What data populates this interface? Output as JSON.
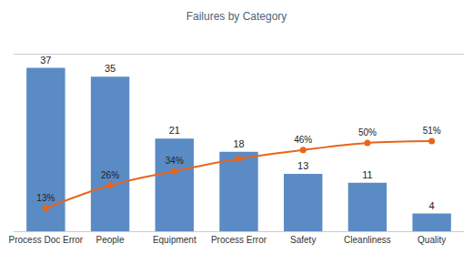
{
  "chart_data": {
    "type": "bar",
    "title": "Failures by Category",
    "categories": [
      "Process Doc Error",
      "People",
      "Equipment",
      "Process Error",
      "Safety",
      "Cleanliness",
      "Quality"
    ],
    "series": [
      {
        "type": "bar",
        "color": "#5b8bc5",
        "values": [
          37,
          35,
          21,
          18,
          13,
          11,
          4
        ]
      },
      {
        "type": "line",
        "axis": "y2",
        "color": "#e8651c",
        "marker": "circle",
        "values": [
          13,
          26,
          34,
          41,
          46,
          50,
          51
        ],
        "value_labels": [
          "13%",
          "26%",
          "34%",
          null,
          "46%",
          "50%",
          "51%"
        ]
      }
    ],
    "ylim": [
      0,
      40
    ],
    "y2lim": [
      0,
      100
    ],
    "grid": false,
    "data_labels": true,
    "tick_labels": "x"
  }
}
